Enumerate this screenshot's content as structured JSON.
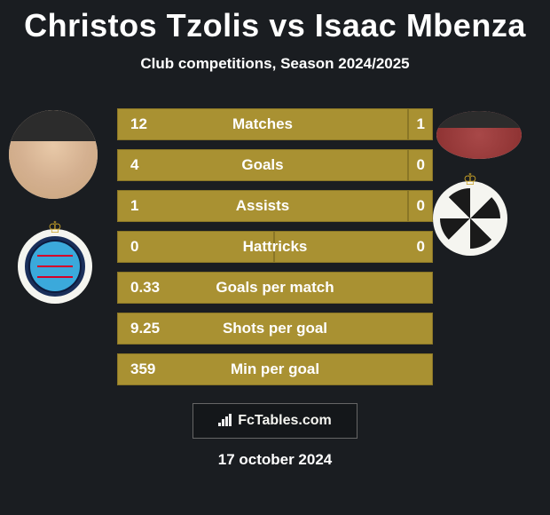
{
  "header": {
    "title": "Christos Tzolis vs Isaac Mbenza",
    "subtitle": "Club competitions, Season 2024/2025"
  },
  "colors": {
    "background": "#1a1d21",
    "bar_color": "#a99132",
    "bar_border": "#8a7626",
    "text": "#ffffff"
  },
  "stats": [
    {
      "label": "Matches",
      "left_value": "12",
      "right_value": "1",
      "left_width": 329,
      "right_width": 27
    },
    {
      "label": "Goals",
      "left_value": "4",
      "right_value": "0",
      "left_width": 329,
      "right_width": 27
    },
    {
      "label": "Assists",
      "left_value": "1",
      "right_value": "0",
      "left_width": 329,
      "right_width": 27
    },
    {
      "label": "Hattricks",
      "left_value": "0",
      "right_value": "0",
      "left_width": 178,
      "right_width": 178
    },
    {
      "label": "Goals per match",
      "left_value": "0.33",
      "right_value": null,
      "single": true
    },
    {
      "label": "Shots per goal",
      "left_value": "9.25",
      "right_value": null,
      "single": true
    },
    {
      "label": "Min per goal",
      "left_value": "359",
      "right_value": null,
      "single": true
    }
  ],
  "footer": {
    "brand": "FcTables.com",
    "date": "17 october 2024"
  }
}
